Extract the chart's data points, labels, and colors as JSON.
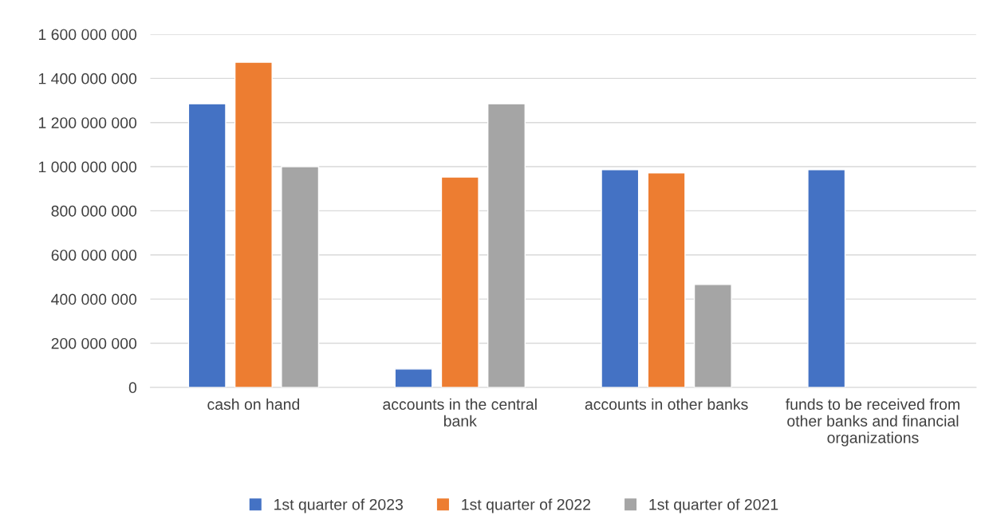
{
  "chart_data": {
    "type": "bar",
    "categories": [
      "cash on hand",
      "accounts in the central\nbank",
      "accounts in other banks",
      "funds to be received from\nother banks and financial\norganizations"
    ],
    "series": [
      {
        "name": "1st quarter of 2023",
        "color": "#4472c4",
        "values": [
          1285000000,
          83000000,
          986000000,
          986000000
        ]
      },
      {
        "name": "1st quarter of 2022",
        "color": "#ed7d31",
        "values": [
          1473000000,
          953000000,
          972000000,
          null
        ]
      },
      {
        "name": "1st quarter of 2021",
        "color": "#a5a5a5",
        "values": [
          1000000000,
          1285000000,
          466000000,
          null
        ]
      }
    ],
    "ylim": [
      0,
      1600000000
    ],
    "yticks": [
      0,
      {
        "value": 200000000,
        "label": "200 000 000"
      },
      {
        "value": 400000000,
        "label": "400 000 000"
      },
      {
        "value": 600000000,
        "label": "600 000 000"
      },
      {
        "value": 800000000,
        "label": "800 000 000"
      },
      {
        "value": 1000000000,
        "label": "1 000 000 000"
      },
      {
        "value": 1200000000,
        "label": "1 200 000 000"
      },
      {
        "value": 1400000000,
        "label": "1 400 000 000"
      },
      {
        "value": 1600000000,
        "label": "1 600 000 000"
      }
    ],
    "grid": "y",
    "legend": "bottom"
  }
}
